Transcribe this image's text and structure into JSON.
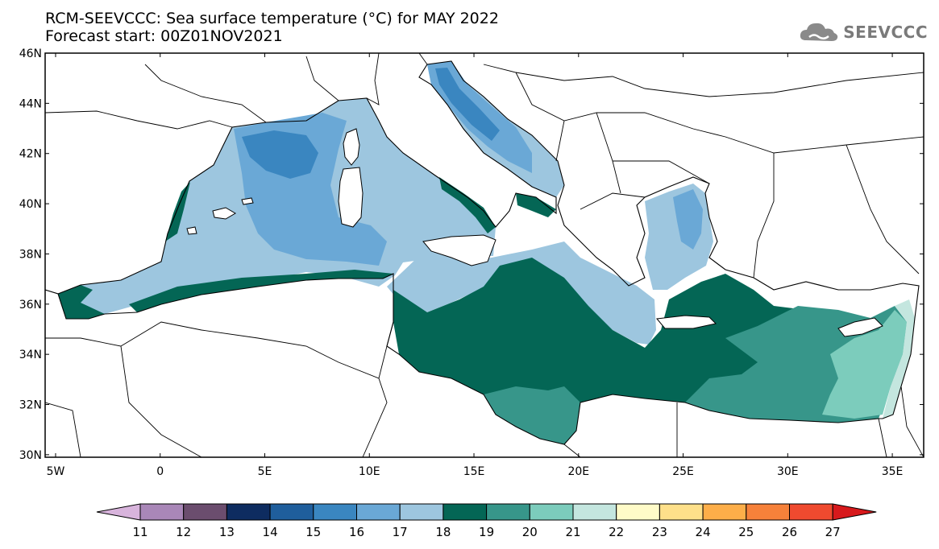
{
  "header": {
    "title_line1": "RCM-SEEVCCC: Sea surface temperature (°C) for MAY 2022",
    "title_line2": "Forecast start: 00Z01NOV2021"
  },
  "logo": {
    "text": "SEEVCCC",
    "icon": "cloud-icon",
    "color": "#7a7a7a"
  },
  "map": {
    "lat_labels": [
      "46N",
      "44N",
      "42N",
      "40N",
      "38N",
      "36N",
      "34N",
      "32N",
      "30N"
    ],
    "lon_labels": [
      "5W",
      "0",
      "5E",
      "10E",
      "15E",
      "20E",
      "25E",
      "30E",
      "35E"
    ],
    "lon_range": [
      -5.5,
      36.5
    ],
    "lat_range": [
      29.9,
      46
    ]
  },
  "colorbar": {
    "labels": [
      "11",
      "12",
      "13",
      "14",
      "15",
      "16",
      "17",
      "18",
      "19",
      "20",
      "21",
      "22",
      "23",
      "24",
      "25",
      "26",
      "27"
    ],
    "colors": [
      "#d8b4dc",
      "#a987b8",
      "#6b4d6e",
      "#0e2c60",
      "#1f5e9c",
      "#3a86c0",
      "#6aa8d6",
      "#9dc6df",
      "#046655",
      "#37968a",
      "#7cccbc",
      "#c4e6df",
      "#fffbc8",
      "#fee08a",
      "#fdae49",
      "#f6813a",
      "#ef4a2f",
      "#d7191c"
    ]
  }
}
